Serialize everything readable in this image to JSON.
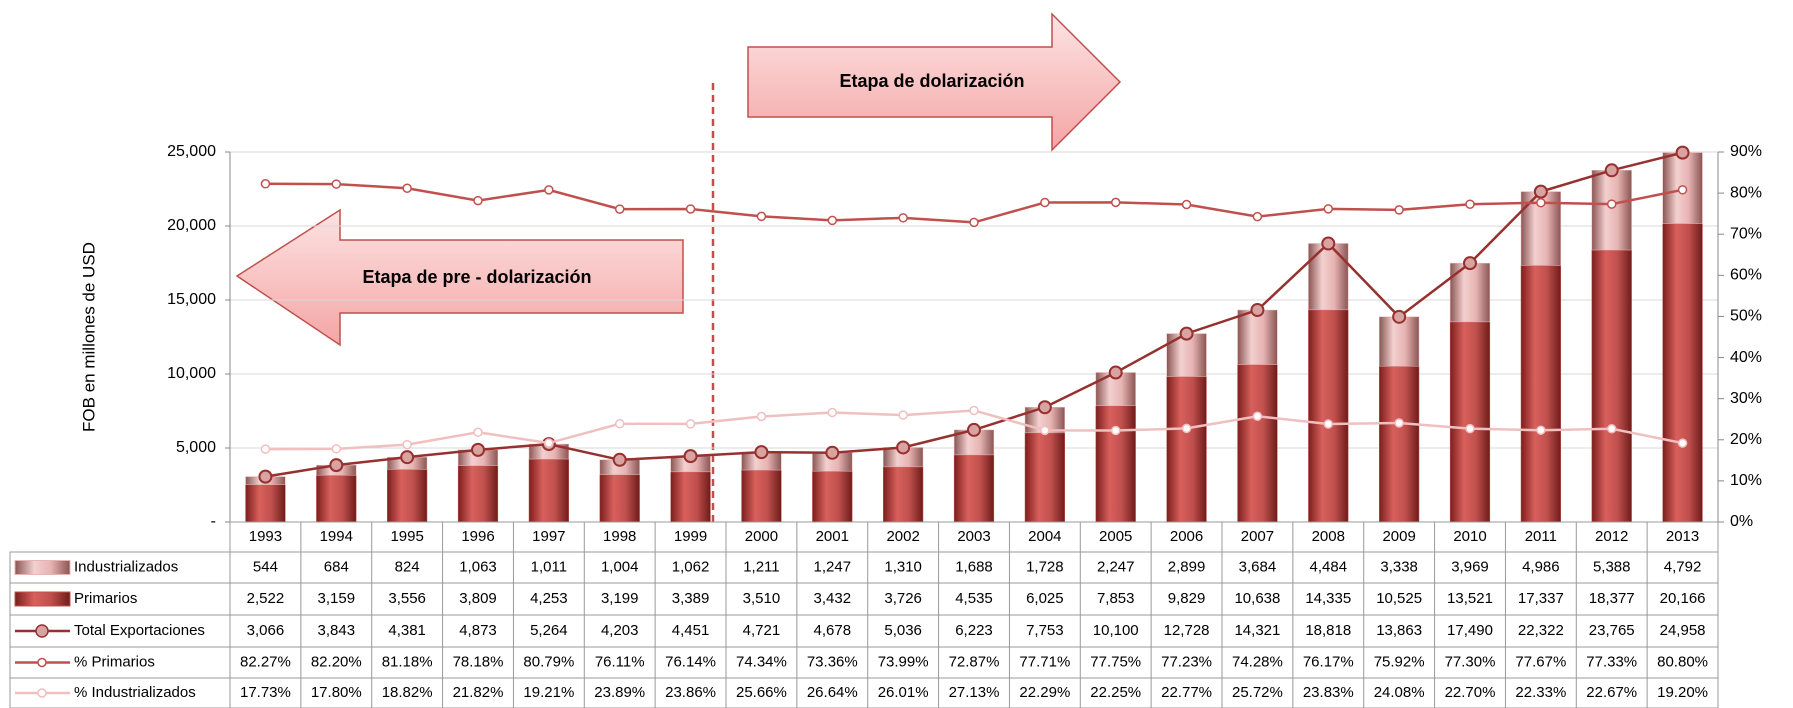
{
  "chart_data": {
    "type": "bar",
    "y_label": "FOB  en millones de USD",
    "annotations": [
      "Etapa de dolarización",
      "Etapa de pre - dolarización"
    ],
    "categories": [
      "1993",
      "1994",
      "1995",
      "1996",
      "1997",
      "1998",
      "1999",
      "2000",
      "2001",
      "2002",
      "2003",
      "2004",
      "2005",
      "2006",
      "2007",
      "2008",
      "2009",
      "2010",
      "2011",
      "2012",
      "2013"
    ],
    "series": [
      {
        "name": "Industrializados",
        "type": "bar",
        "color": "#e6b4b3",
        "values": [
          544,
          684,
          824,
          1063,
          1011,
          1004,
          1062,
          1211,
          1247,
          1310,
          1688,
          1728,
          2247,
          2899,
          3684,
          4484,
          3338,
          3969,
          4986,
          5388,
          4792
        ],
        "value_labels": [
          "544",
          "684",
          "824",
          "1,063",
          "1,011",
          "1,004",
          "1,062",
          "1,211",
          "1,247",
          "1,310",
          "1,688",
          "1,728",
          "2,247",
          "2,899",
          "3,684",
          "4,484",
          "3,338",
          "3,969",
          "4,986",
          "5,388",
          "4,792"
        ]
      },
      {
        "name": "Primarios",
        "type": "bar",
        "color": "#c0504d",
        "values": [
          2522,
          3159,
          3556,
          3809,
          4253,
          3199,
          3389,
          3510,
          3432,
          3726,
          4535,
          6025,
          7853,
          9829,
          10638,
          14335,
          10525,
          13521,
          17337,
          18377,
          20166
        ],
        "value_labels": [
          "2,522",
          "3,159",
          "3,556",
          "3,809",
          "4,253",
          "3,199",
          "3,389",
          "3,510",
          "3,432",
          "3,726",
          "4,535",
          "6,025",
          "7,853",
          "9,829",
          "10,638",
          "14,335",
          "10,525",
          "13,521",
          "17,337",
          "18,377",
          "20,166"
        ]
      },
      {
        "name": "Total Exportaciones",
        "type": "line",
        "color": "#96312f",
        "values": [
          3066,
          3843,
          4381,
          4873,
          5264,
          4203,
          4451,
          4721,
          4678,
          5036,
          6223,
          7753,
          10100,
          12728,
          14321,
          18818,
          13863,
          17490,
          22322,
          23765,
          24958
        ],
        "value_labels": [
          "3,066",
          "3,843",
          "4,381",
          "4,873",
          "5,264",
          "4,203",
          "4,451",
          "4,721",
          "4,678",
          "5,036",
          "6,223",
          "7,753",
          "10,100",
          "12,728",
          "14,321",
          "18,818",
          "13,863",
          "17,490",
          "22,322",
          "23,765",
          "24,958"
        ]
      },
      {
        "name": "% Primarios",
        "type": "line",
        "axis": "y2",
        "color": "#c0504d",
        "values": [
          82.27,
          82.2,
          81.18,
          78.18,
          80.79,
          76.11,
          76.14,
          74.34,
          73.36,
          73.99,
          72.87,
          77.71,
          77.75,
          77.23,
          74.28,
          76.17,
          75.92,
          77.3,
          77.67,
          77.33,
          80.8
        ],
        "value_labels": [
          "82.27%",
          "82.20%",
          "81.18%",
          "78.18%",
          "80.79%",
          "76.11%",
          "76.14%",
          "74.34%",
          "73.36%",
          "73.99%",
          "72.87%",
          "77.71%",
          "77.75%",
          "77.23%",
          "74.28%",
          "76.17%",
          "75.92%",
          "77.30%",
          "77.67%",
          "77.33%",
          "80.80%"
        ]
      },
      {
        "name": "% Industrializados",
        "type": "line",
        "axis": "y2",
        "color": "#f0bfbf",
        "values": [
          17.73,
          17.8,
          18.82,
          21.82,
          19.21,
          23.89,
          23.86,
          25.66,
          26.64,
          26.01,
          27.13,
          22.29,
          22.25,
          22.77,
          25.72,
          23.83,
          24.08,
          22.7,
          22.33,
          22.67,
          19.2
        ],
        "value_labels": [
          "17.73%",
          "17.80%",
          "18.82%",
          "21.82%",
          "19.21%",
          "23.89%",
          "23.86%",
          "25.66%",
          "26.64%",
          "26.01%",
          "27.13%",
          "22.29%",
          "22.25%",
          "22.77%",
          "25.72%",
          "23.83%",
          "24.08%",
          "22.70%",
          "22.33%",
          "22.67%",
          "19.20%"
        ]
      }
    ],
    "ylim": [
      0,
      25000
    ],
    "yticks": [
      {
        "value": 0,
        "label": "-"
      },
      {
        "value": 5000,
        "label": "5,000"
      },
      {
        "value": 10000,
        "label": "10,000"
      },
      {
        "value": 15000,
        "label": "15,000"
      },
      {
        "value": 20000,
        "label": "20,000"
      },
      {
        "value": 25000,
        "label": "25,000"
      }
    ],
    "y2lim": [
      0,
      90
    ],
    "y2ticks": [
      {
        "value": 0,
        "label": "0%"
      },
      {
        "value": 10,
        "label": "10%"
      },
      {
        "value": 20,
        "label": "20%"
      },
      {
        "value": 30,
        "label": "30%"
      },
      {
        "value": 40,
        "label": "40%"
      },
      {
        "value": 50,
        "label": "50%"
      },
      {
        "value": 60,
        "label": "60%"
      },
      {
        "value": 70,
        "label": "70%"
      },
      {
        "value": 80,
        "label": "80%"
      },
      {
        "value": 90,
        "label": "90%"
      }
    ],
    "grid": true
  }
}
